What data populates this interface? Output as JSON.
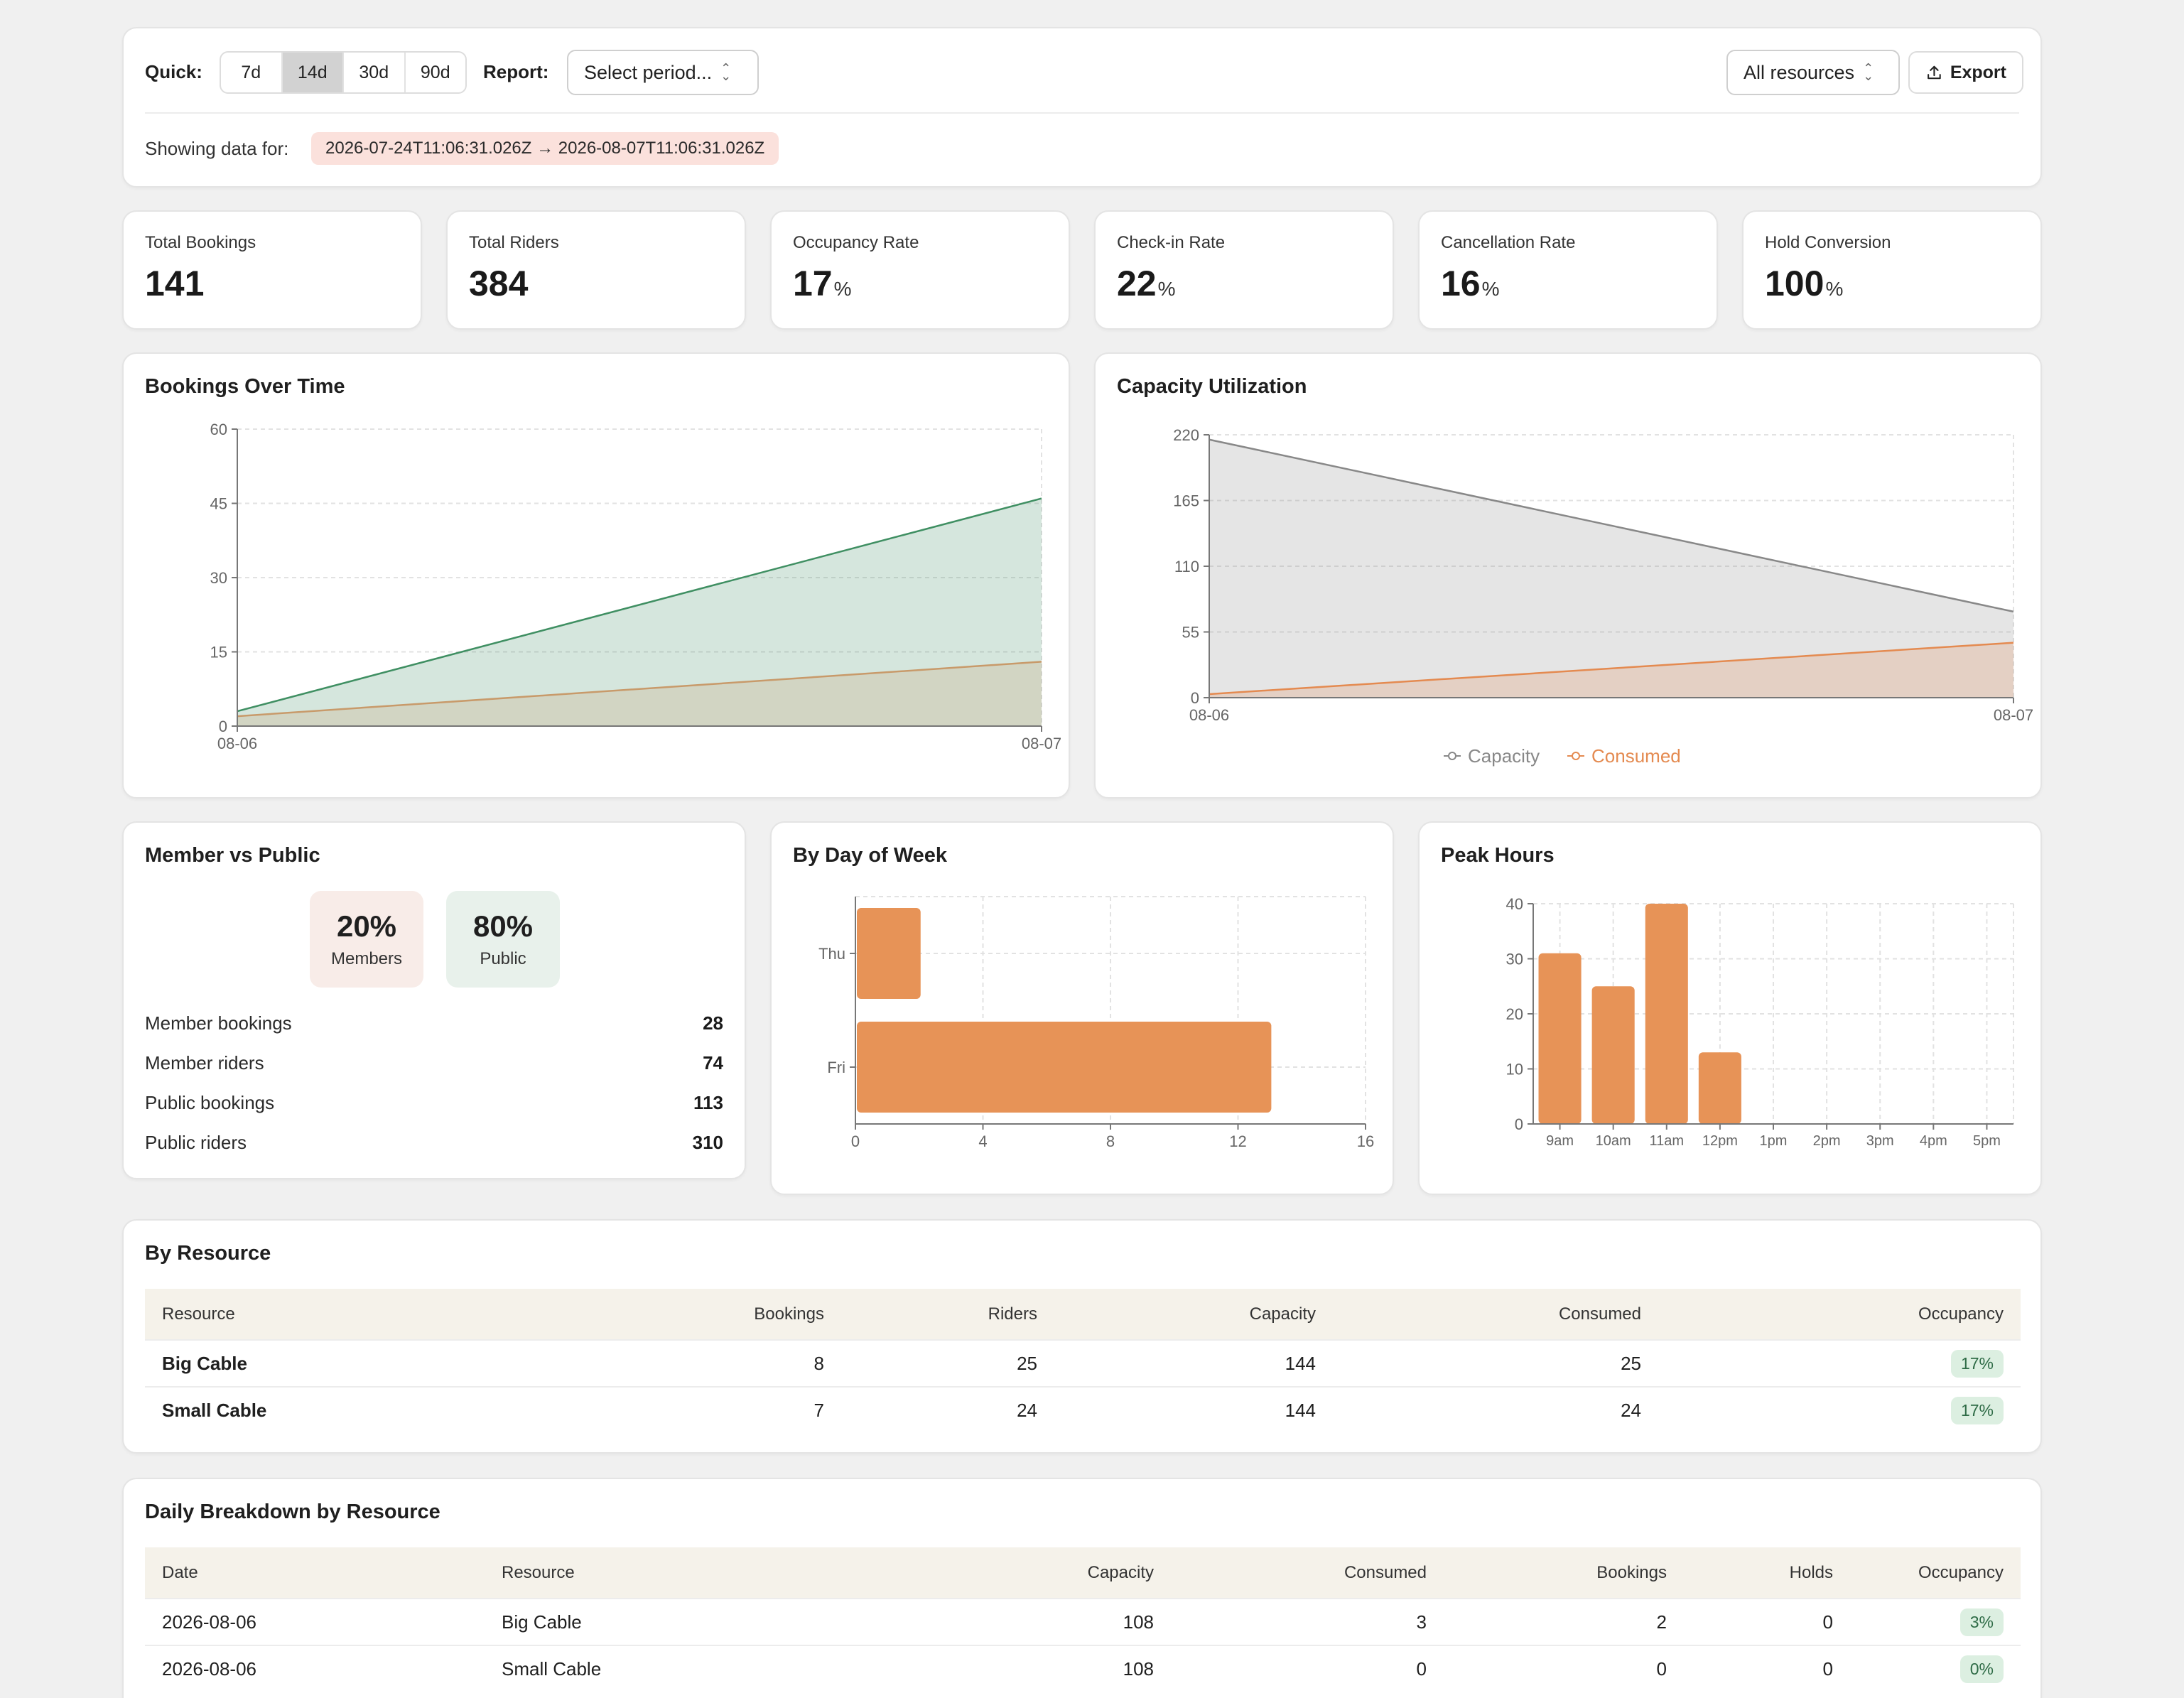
{
  "filters": {
    "quick_label": "Quick:",
    "quick_options": [
      "7d",
      "14d",
      "30d",
      "90d"
    ],
    "quick_active": "14d",
    "report_label": "Report:",
    "report_select": "Select period...",
    "resource_select": "All resources",
    "export_label": "Export",
    "showing_label": "Showing data for:",
    "range": "2026-07-24T11:06:31.026Z → 2026-08-07T11:06:31.026Z"
  },
  "kpis": [
    {
      "label": "Total Bookings",
      "value": "141",
      "unit": ""
    },
    {
      "label": "Total Riders",
      "value": "384",
      "unit": ""
    },
    {
      "label": "Occupancy Rate",
      "value": "17",
      "unit": "%"
    },
    {
      "label": "Check-in Rate",
      "value": "22",
      "unit": "%"
    },
    {
      "label": "Cancellation Rate",
      "value": "16",
      "unit": "%"
    },
    {
      "label": "Hold Conversion",
      "value": "100",
      "unit": "%"
    }
  ],
  "charts": {
    "bookings_over_time": {
      "title": "Bookings Over Time"
    },
    "capacity_utilization": {
      "title": "Capacity Utilization"
    },
    "member_vs_public": {
      "title": "Member vs Public"
    },
    "by_day_of_week": {
      "title": "By Day of Week"
    },
    "peak_hours": {
      "title": "Peak Hours"
    }
  },
  "member_public": {
    "members_pct": "20%",
    "members_label": "Members",
    "public_pct": "80%",
    "public_label": "Public",
    "rows": [
      {
        "label": "Member bookings",
        "value": "28"
      },
      {
        "label": "Member riders",
        "value": "74"
      },
      {
        "label": "Public bookings",
        "value": "113"
      },
      {
        "label": "Public riders",
        "value": "310"
      }
    ]
  },
  "chart_data": [
    {
      "type": "area",
      "title": "Bookings Over Time",
      "x": [
        "08-06",
        "08-07"
      ],
      "ylim": [
        0,
        60
      ],
      "yticks": [
        0,
        15,
        30,
        45,
        60
      ],
      "grid": true,
      "series": [
        {
          "values": [
            3,
            46
          ],
          "color": "#3f8f62"
        },
        {
          "values": [
            2,
            13
          ],
          "color": "#c89a6a"
        }
      ]
    },
    {
      "type": "area",
      "title": "Capacity Utilization",
      "x": [
        "08-06",
        "08-07"
      ],
      "ylim": [
        0,
        220
      ],
      "yticks": [
        0,
        55,
        110,
        165,
        220
      ],
      "grid": true,
      "legend": "bottom",
      "series": [
        {
          "name": "Capacity",
          "values": [
            216,
            72
          ],
          "color": "#888888"
        },
        {
          "name": "Consumed",
          "values": [
            3,
            46
          ],
          "color": "#e48a50"
        }
      ]
    },
    {
      "type": "bar",
      "orientation": "horizontal",
      "title": "By Day of Week",
      "categories": [
        "Thu",
        "Fri"
      ],
      "values": [
        2,
        13
      ],
      "xlim": [
        0,
        16
      ],
      "xticks": [
        0,
        4,
        8,
        12,
        16
      ],
      "grid": true,
      "color": "#e79357"
    },
    {
      "type": "bar",
      "title": "Peak Hours",
      "categories": [
        "9am",
        "10am",
        "11am",
        "12pm",
        "1pm",
        "2pm",
        "3pm",
        "4pm",
        "5pm"
      ],
      "values": [
        31,
        25,
        40,
        13,
        0,
        0,
        0,
        0,
        0
      ],
      "ylim": [
        0,
        40
      ],
      "yticks": [
        0,
        10,
        20,
        30,
        40
      ],
      "grid": true,
      "color": "#e79357"
    }
  ],
  "by_resource": {
    "title": "By Resource",
    "headers": [
      "Resource",
      "Bookings",
      "Riders",
      "Capacity",
      "Consumed",
      "Occupancy"
    ],
    "rows": [
      [
        "Big Cable",
        "8",
        "25",
        "144",
        "25",
        "17%"
      ],
      [
        "Small Cable",
        "7",
        "24",
        "144",
        "24",
        "17%"
      ]
    ]
  },
  "daily": {
    "title": "Daily Breakdown by Resource",
    "headers": [
      "Date",
      "Resource",
      "Capacity",
      "Consumed",
      "Bookings",
      "Holds",
      "Occupancy"
    ],
    "rows": [
      [
        "2026-08-06",
        "Big Cable",
        "108",
        "3",
        "2",
        "0",
        "3%"
      ],
      [
        "2026-08-06",
        "Small Cable",
        "108",
        "0",
        "0",
        "0",
        "0%"
      ]
    ]
  }
}
